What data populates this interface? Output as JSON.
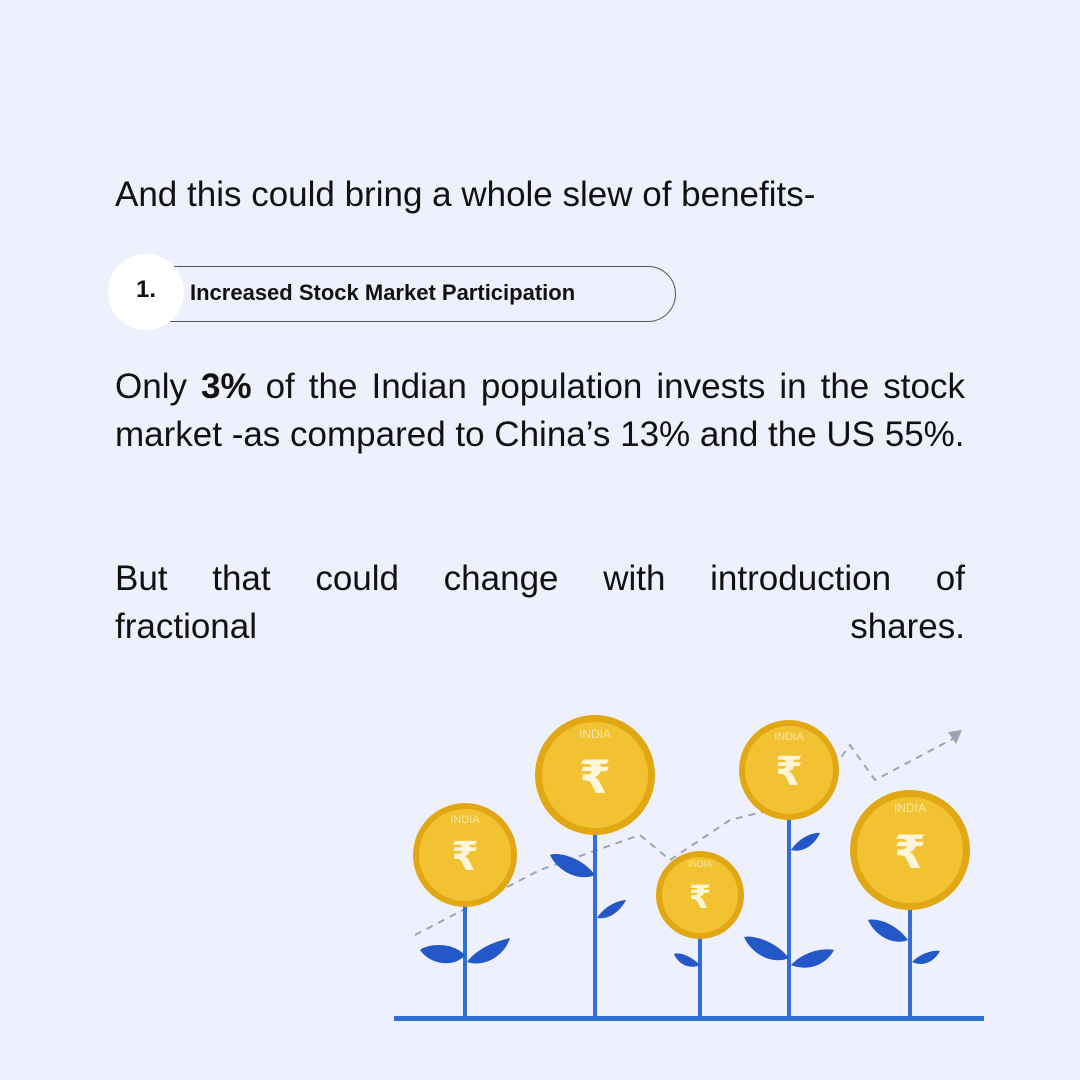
{
  "intro": "And this could bring a whole slew of benefits-",
  "benefit": {
    "number": "1.",
    "title": "Increased Stock Market Participation"
  },
  "paragraph1": {
    "prefix": "Only ",
    "highlight": "3%",
    "rest": " of the Indian population invests in the stock market -as compared to China’s 13% and the US 55%."
  },
  "paragraph2": {
    "line1": "But that could change with introduction of",
    "line2": "fractional shares."
  },
  "illustration": {
    "coin_text": "INDIA",
    "currency_symbol": "₹",
    "colors": {
      "background": "#EEF1FD",
      "coin": "#F2C232",
      "coin_edge": "#E2A814",
      "stem": "#2F6FD6",
      "leaf": "#2458C8",
      "trend": "#9AA3B8"
    }
  }
}
